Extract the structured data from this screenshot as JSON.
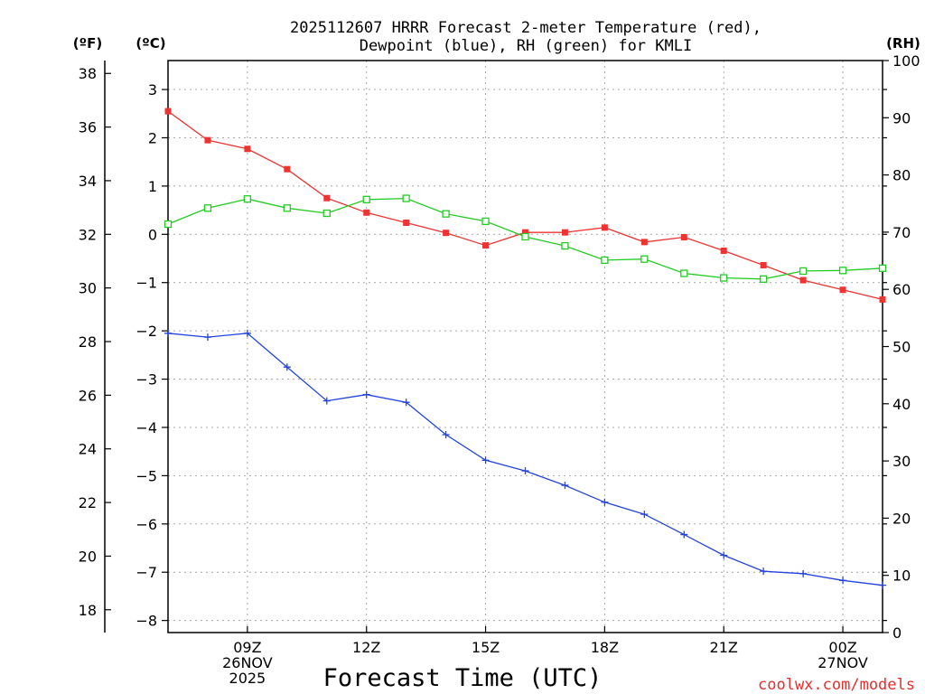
{
  "title_line1": "2025112607 HRRR Forecast 2-meter Temperature (red),",
  "title_line2": "Dewpoint (blue), RH (green) for KMLI",
  "unit_f": "(ºF)",
  "unit_c": "(ºC)",
  "unit_rh": "(RH)",
  "xlabel": "Forecast Time (UTC)",
  "watermark": "coolwx.com/models",
  "colors": {
    "temperature": "#ee3333",
    "dewpoint": "#2244dd",
    "rh": "#22cc22",
    "grid": "#a8a8a8",
    "watermark": "#e03030"
  },
  "chart_data": {
    "type": "line",
    "title": "2025112607 HRRR Forecast 2-meter Temperature (red), Dewpoint (blue), RH (green) for KMLI",
    "xlabel": "Forecast Time (UTC)",
    "x_hours": [
      7,
      8,
      9,
      10,
      11,
      12,
      13,
      14,
      15,
      16,
      17,
      18,
      19,
      20,
      21,
      22,
      23,
      24,
      25
    ],
    "xlim": [
      7,
      25
    ],
    "x_ticks": [
      {
        "hour": 9,
        "lines": [
          "09Z",
          "26NOV",
          "2025"
        ]
      },
      {
        "hour": 12,
        "lines": [
          "12Z"
        ]
      },
      {
        "hour": 15,
        "lines": [
          "15Z"
        ]
      },
      {
        "hour": 18,
        "lines": [
          "18Z"
        ]
      },
      {
        "hour": 21,
        "lines": [
          "21Z"
        ]
      },
      {
        "hour": 24,
        "lines": [
          "00Z",
          "27NOV"
        ]
      }
    ],
    "celsius_axis": {
      "label": "(ºC)",
      "range": [
        -8.25,
        3.6
      ],
      "ticks": [
        3,
        2,
        1,
        0,
        -1,
        -2,
        -3,
        -4,
        -5,
        -6,
        -7,
        -8
      ],
      "tick_labels": [
        "3",
        "2",
        "1",
        "0",
        "−1",
        "−2",
        "−3",
        "−4",
        "−5",
        "−6",
        "−7",
        "−8"
      ]
    },
    "fahrenheit_axis": {
      "label": "(ºF)",
      "ticks": [
        38,
        36,
        34,
        32,
        30,
        28,
        26,
        24,
        22,
        20,
        18
      ]
    },
    "rh_axis": {
      "label": "(RH)",
      "range": [
        0,
        100
      ],
      "ticks": [
        100,
        90,
        80,
        70,
        60,
        50,
        40,
        30,
        20,
        10,
        0
      ]
    },
    "grid": true,
    "series": [
      {
        "name": "2-meter Temperature",
        "unit": "C",
        "axis": "celsius",
        "color": "red",
        "marker": "filled-square",
        "values": [
          2.55,
          1.95,
          1.77,
          1.35,
          0.75,
          0.45,
          0.24,
          0.03,
          -0.23,
          0.04,
          0.04,
          0.14,
          -0.16,
          -0.06,
          -0.34,
          -0.64,
          -0.95,
          -1.15,
          -1.35
        ]
      },
      {
        "name": "Dewpoint",
        "unit": "C",
        "axis": "celsius",
        "color": "blue",
        "marker": "plus",
        "values": [
          -2.05,
          -2.13,
          -2.05,
          -2.75,
          -3.45,
          -3.32,
          -3.48,
          -4.15,
          -4.68,
          -4.9,
          -5.2,
          -5.55,
          -5.8,
          -6.22,
          -6.65,
          -6.98,
          -7.03,
          -7.17,
          -7.27
        ]
      },
      {
        "name": "RH",
        "unit": "%",
        "axis": "rh",
        "color": "green",
        "marker": "open-square",
        "values": [
          71.4,
          74.2,
          75.8,
          74.2,
          73.3,
          75.7,
          75.9,
          73.2,
          71.9,
          69.2,
          67.6,
          65.1,
          65.3,
          62.8,
          62.0,
          61.8,
          63.2,
          63.3,
          63.7
        ]
      }
    ]
  }
}
